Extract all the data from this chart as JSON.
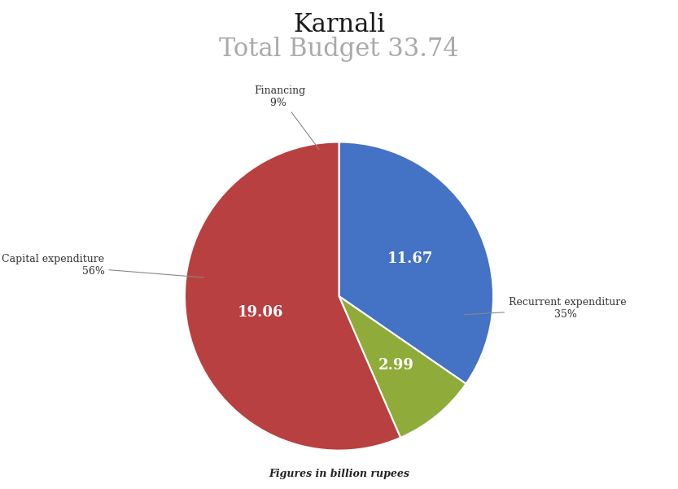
{
  "title_main": "Karnali",
  "title_sub": "Total Budget 33.74",
  "title_main_color": "#1a1a1a",
  "title_sub_color": "#aaaaaa",
  "slices": [
    {
      "label": "Recurrent expenditure",
      "value": 11.67,
      "pct": "35%",
      "color": "#4472C4"
    },
    {
      "label": "Financing",
      "value": 2.99,
      "pct": "9%",
      "color": "#8fac3a"
    },
    {
      "label": "Capital expenditure",
      "value": 19.06,
      "pct": "56%",
      "color": "#b94040"
    }
  ],
  "footnote": "Figures in billion rupees",
  "bg_color": "#ffffff",
  "label_fontsize": 9,
  "value_fontsize": 13,
  "title_main_fontsize": 22,
  "title_sub_fontsize": 22,
  "footnote_fontsize": 9,
  "startangle": 90
}
